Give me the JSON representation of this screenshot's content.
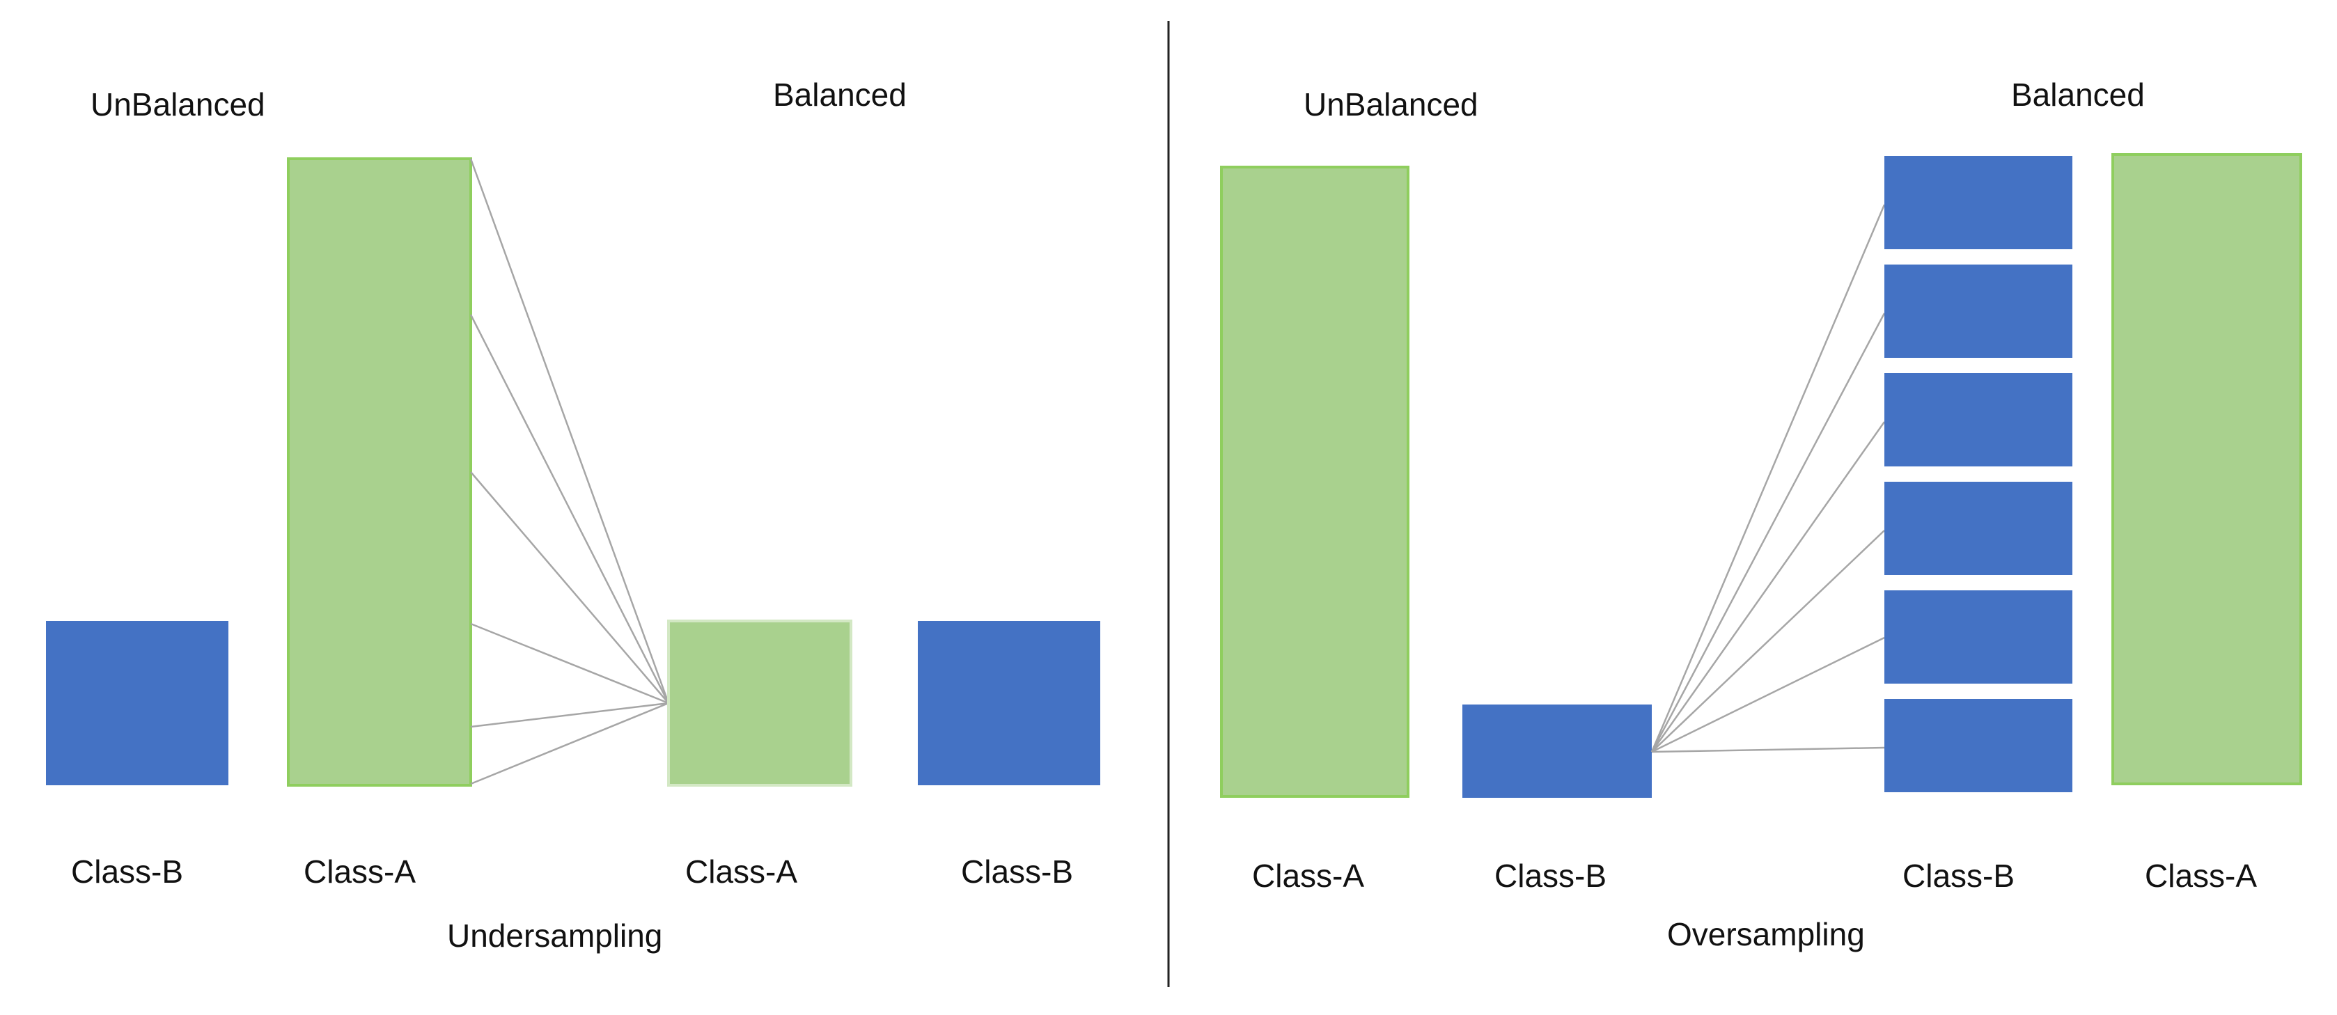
{
  "colors": {
    "class_a_fill": "#a9d18e",
    "class_a_stroke": "#8fce5e",
    "class_b_fill": "#4472c4",
    "connector": "#a6a6a6",
    "divider": "#222222",
    "text": "#111111"
  },
  "undersampling": {
    "title": "Undersampling",
    "unbalanced_heading": "UnBalanced",
    "balanced_heading": "Balanced",
    "unbalanced_class_b": "Class-B",
    "unbalanced_class_a": "Class-A",
    "balanced_class_a": "Class-A",
    "balanced_class_b": "Class-B"
  },
  "oversampling": {
    "title": "Oversampling",
    "unbalanced_heading": "UnBalanced",
    "balanced_heading": "Balanced",
    "unbalanced_class_a": "Class-A",
    "unbalanced_class_b": "Class-B",
    "balanced_class_b": "Class-B",
    "balanced_class_a": "Class-A"
  }
}
